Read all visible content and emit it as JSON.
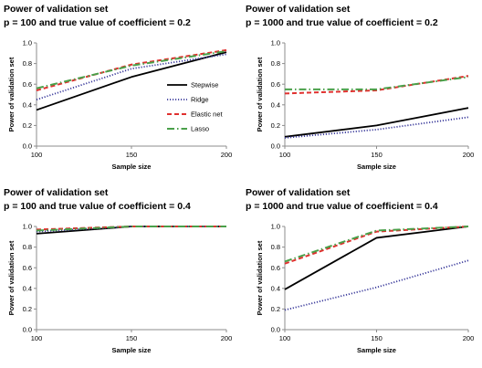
{
  "chart_data": [
    {
      "type": "line",
      "title": "Power of validation set",
      "subtitle": "p = 100 and true value of coefficient = 0.2",
      "xlabel": "Sample size",
      "ylabel": "Power of validation set",
      "x": [
        100,
        150,
        200
      ],
      "xticks": [
        "100",
        "150",
        "200"
      ],
      "ylim": [
        0,
        1.0
      ],
      "yticks": [
        "0.0",
        "0.2",
        "0.4",
        "0.6",
        "0.8",
        "1.0"
      ],
      "legend": "right",
      "series": [
        {
          "name": "Stepwise",
          "values": [
            0.35,
            0.67,
            0.91
          ],
          "color": "#000000",
          "dash": "solid"
        },
        {
          "name": "Ridge",
          "values": [
            0.45,
            0.75,
            0.89
          ],
          "color": "#3c3c9c",
          "dash": "dotted"
        },
        {
          "name": "Elastic net",
          "values": [
            0.54,
            0.79,
            0.93
          ],
          "color": "#e0312f",
          "dash": "dashed"
        },
        {
          "name": "Lasso",
          "values": [
            0.56,
            0.78,
            0.92
          ],
          "color": "#4aa04a",
          "dash": "dashdot"
        }
      ]
    },
    {
      "type": "line",
      "title": "Power of validation set",
      "subtitle": "p = 1000 and true value of coefficient = 0.2",
      "xlabel": "Sample size",
      "ylabel": "Power of validation set",
      "x": [
        100,
        150,
        200
      ],
      "xticks": [
        "100",
        "150",
        "200"
      ],
      "ylim": [
        0,
        1.0
      ],
      "yticks": [
        "0.0",
        "0.2",
        "0.4",
        "0.6",
        "0.8",
        "1.0"
      ],
      "series": [
        {
          "name": "Stepwise",
          "values": [
            0.09,
            0.2,
            0.37
          ],
          "color": "#000000",
          "dash": "solid"
        },
        {
          "name": "Ridge",
          "values": [
            0.08,
            0.16,
            0.28
          ],
          "color": "#3c3c9c",
          "dash": "dotted"
        },
        {
          "name": "Elastic net",
          "values": [
            0.51,
            0.54,
            0.68
          ],
          "color": "#e0312f",
          "dash": "dashed"
        },
        {
          "name": "Lasso",
          "values": [
            0.55,
            0.55,
            0.67
          ],
          "color": "#4aa04a",
          "dash": "dashdot"
        }
      ]
    },
    {
      "type": "line",
      "title": "Power of validation set",
      "subtitle": "p = 100 and true value of coefficient = 0.4",
      "xlabel": "Sample size",
      "ylabel": "Power of validation set",
      "x": [
        100,
        150,
        200
      ],
      "xticks": [
        "100",
        "150",
        "200"
      ],
      "ylim": [
        0,
        1.0
      ],
      "yticks": [
        "0.0",
        "0.2",
        "0.4",
        "0.6",
        "0.8",
        "1.0"
      ],
      "series": [
        {
          "name": "Stepwise",
          "values": [
            0.93,
            1.0,
            1.0
          ],
          "color": "#000000",
          "dash": "solid"
        },
        {
          "name": "Ridge",
          "values": [
            0.95,
            1.0,
            1.0
          ],
          "color": "#3c3c9c",
          "dash": "dotted"
        },
        {
          "name": "Elastic net",
          "values": [
            0.97,
            1.0,
            1.0
          ],
          "color": "#e0312f",
          "dash": "dashed"
        },
        {
          "name": "Lasso",
          "values": [
            0.96,
            1.0,
            1.0
          ],
          "color": "#4aa04a",
          "dash": "dashdot"
        }
      ]
    },
    {
      "type": "line",
      "title": "Power of validation set",
      "subtitle": "p = 1000 and true value of coefficient = 0.4",
      "xlabel": "Sample size",
      "ylabel": "Power of validation set",
      "x": [
        100,
        150,
        200
      ],
      "xticks": [
        "100",
        "150",
        "200"
      ],
      "ylim": [
        0,
        1.0
      ],
      "yticks": [
        "0.0",
        "0.2",
        "0.4",
        "0.6",
        "0.8",
        "1.0"
      ],
      "series": [
        {
          "name": "Stepwise",
          "values": [
            0.39,
            0.89,
            1.0
          ],
          "color": "#000000",
          "dash": "solid"
        },
        {
          "name": "Ridge",
          "values": [
            0.19,
            0.41,
            0.67
          ],
          "color": "#3c3c9c",
          "dash": "dotted"
        },
        {
          "name": "Elastic net",
          "values": [
            0.64,
            0.95,
            1.0
          ],
          "color": "#e0312f",
          "dash": "dashed"
        },
        {
          "name": "Lasso",
          "values": [
            0.66,
            0.96,
            1.0
          ],
          "color": "#4aa04a",
          "dash": "dashdot"
        }
      ]
    }
  ]
}
